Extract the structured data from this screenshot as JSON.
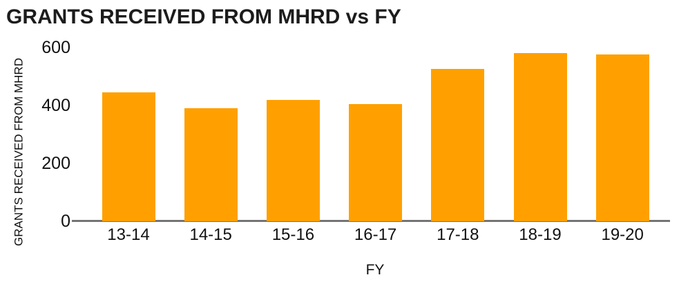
{
  "chart_data": {
    "type": "bar",
    "title": "GRANTS RECEIVED FROM MHRD vs FY",
    "xlabel": "FY",
    "ylabel": "GRANTS RECEIVED FROM MHRD",
    "categories": [
      "13-14",
      "14-15",
      "15-16",
      "16-17",
      "17-18",
      "18-19",
      "19-20"
    ],
    "values": [
      445,
      390,
      420,
      405,
      525,
      580,
      575
    ],
    "yticks": [
      0,
      200,
      400,
      600
    ],
    "ylim": [
      0,
      600
    ],
    "grid": false,
    "legend": false,
    "colors": {
      "bar": "#FFA000",
      "axis_line": "#747474",
      "title_text": "#1C1C1C",
      "tick_text": "#111111",
      "background": "#FFFFFF"
    }
  }
}
